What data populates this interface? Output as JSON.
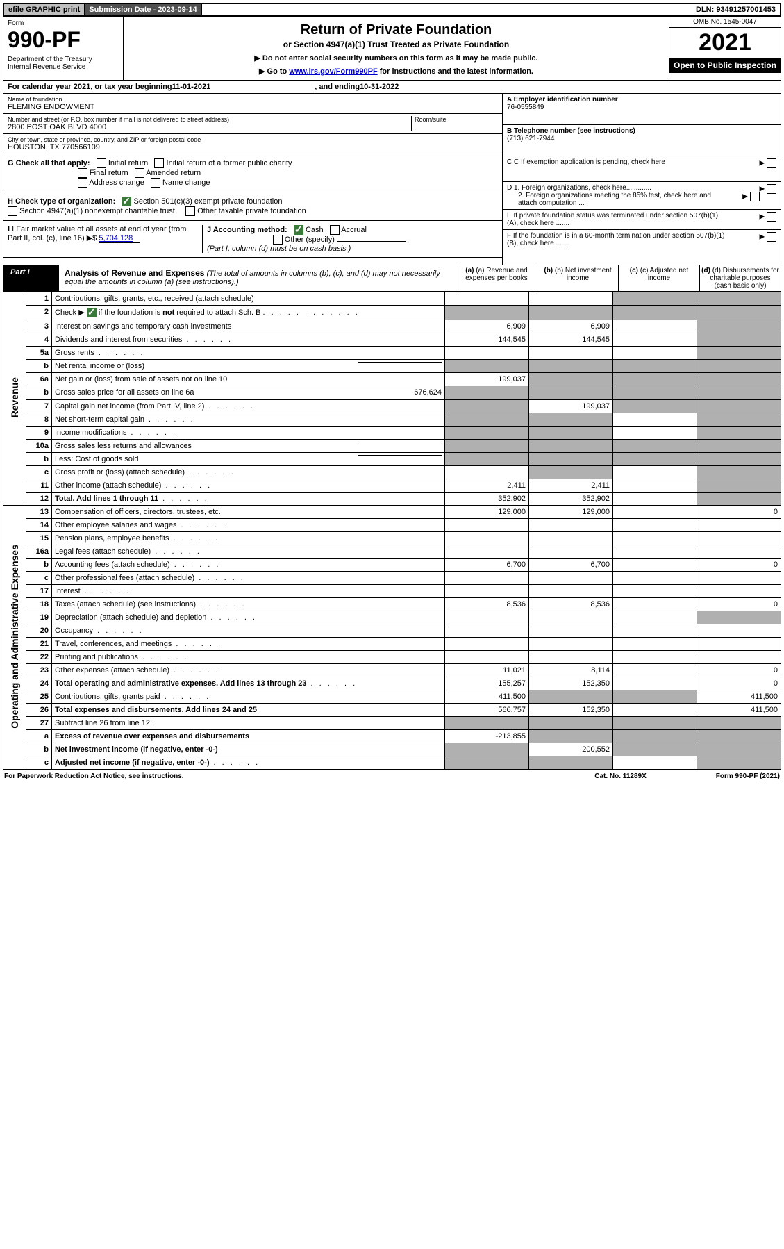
{
  "top": {
    "efile": "efile GRAPHIC print",
    "sub_label": "Submission Date - 2023-09-14",
    "dln": "DLN: 93491257001453"
  },
  "header": {
    "form_label": "Form",
    "form_num": "990-PF",
    "dept": "Department of the Treasury\nInternal Revenue Service",
    "title": "Return of Private Foundation",
    "subtitle": "or Section 4947(a)(1) Trust Treated as Private Foundation",
    "note1": "▶ Do not enter social security numbers on this form as it may be made public.",
    "note2_pre": "▶ Go to ",
    "note2_link": "www.irs.gov/Form990PF",
    "note2_post": " for instructions and the latest information.",
    "omb": "OMB No. 1545-0047",
    "year": "2021",
    "open": "Open to Public Inspection"
  },
  "cal": {
    "pre": "For calendar year 2021, or tax year beginning ",
    "begin": "11-01-2021",
    "mid": ", and ending ",
    "end": "10-31-2022"
  },
  "foundation": {
    "name_label": "Name of foundation",
    "name": "FLEMING ENDOWMENT",
    "addr_label": "Number and street (or P.O. box number if mail is not delivered to street address)",
    "addr": "2800 POST OAK BLVD 4000",
    "room_label": "Room/suite",
    "city_label": "City or town, state or province, country, and ZIP or foreign postal code",
    "city": "HOUSTON, TX  770566109",
    "ein_label": "A Employer identification number",
    "ein": "76-0555849",
    "phone_label": "B Telephone number (see instructions)",
    "phone": "(713) 621-7944",
    "c_label": "C If exemption application is pending, check here",
    "d1": "D 1. Foreign organizations, check here.............",
    "d2": "2. Foreign organizations meeting the 85% test, check here and attach computation ...",
    "e": "E If private foundation status was terminated under section 507(b)(1)(A), check here .......",
    "f": "F If the foundation is in a 60-month termination under section 507(b)(1)(B), check here ......."
  },
  "g": {
    "label": "G Check all that apply:",
    "opts": [
      "Initial return",
      "Initial return of a former public charity",
      "Final return",
      "Amended return",
      "Address change",
      "Name change"
    ]
  },
  "h": {
    "label": "H Check type of organization:",
    "opt1": "Section 501(c)(3) exempt private foundation",
    "opt2": "Section 4947(a)(1) nonexempt charitable trust",
    "opt3": "Other taxable private foundation"
  },
  "i": {
    "label": "I Fair market value of all assets at end of year (from Part II, col. (c), line 16)",
    "val": "5,704,128"
  },
  "j": {
    "label": "J Accounting method:",
    "cash": "Cash",
    "accrual": "Accrual",
    "other": "Other (specify)",
    "note": "(Part I, column (d) must be on cash basis.)"
  },
  "part1": {
    "tab": "Part I",
    "title": "Analysis of Revenue and Expenses",
    "title_note": " (The total of amounts in columns (b), (c), and (d) may not necessarily equal the amounts in column (a) (see instructions).)",
    "col_a": "(a) Revenue and expenses per books",
    "col_b": "(b) Net investment income",
    "col_c": "(c) Adjusted net income",
    "col_d": "(d) Disbursements for charitable purposes (cash basis only)"
  },
  "vlabels": {
    "revenue": "Revenue",
    "expenses": "Operating and Administrative Expenses"
  },
  "rows": [
    {
      "n": "1",
      "desc": "Contributions, gifts, grants, etc., received (attach schedule)",
      "a": "",
      "b": "",
      "c": "shade",
      "d": "shade"
    },
    {
      "n": "2",
      "desc": "Check ▶ ☑ if the foundation is not required to attach Sch. B",
      "a": "shade",
      "b": "shade",
      "c": "shade",
      "d": "shade",
      "dotted": true
    },
    {
      "n": "3",
      "desc": "Interest on savings and temporary cash investments",
      "a": "6,909",
      "b": "6,909",
      "c": "",
      "d": "shade"
    },
    {
      "n": "4",
      "desc": "Dividends and interest from securities",
      "a": "144,545",
      "b": "144,545",
      "c": "",
      "d": "shade",
      "dotted": true
    },
    {
      "n": "5a",
      "desc": "Gross rents",
      "a": "",
      "b": "",
      "c": "",
      "d": "shade",
      "dotted": true
    },
    {
      "n": "b",
      "desc": "Net rental income or (loss)",
      "a": "shade",
      "b": "shade",
      "c": "shade",
      "d": "shade",
      "inline": true
    },
    {
      "n": "6a",
      "desc": "Net gain or (loss) from sale of assets not on line 10",
      "a": "199,037",
      "b": "shade",
      "c": "shade",
      "d": "shade"
    },
    {
      "n": "b",
      "desc": "Gross sales price for all assets on line 6a",
      "inline_val": "676,624",
      "a": "shade",
      "b": "shade",
      "c": "shade",
      "d": "shade"
    },
    {
      "n": "7",
      "desc": "Capital gain net income (from Part IV, line 2)",
      "a": "shade",
      "b": "199,037",
      "c": "shade",
      "d": "shade",
      "dotted": true
    },
    {
      "n": "8",
      "desc": "Net short-term capital gain",
      "a": "shade",
      "b": "shade",
      "c": "",
      "d": "shade",
      "dotted": true
    },
    {
      "n": "9",
      "desc": "Income modifications",
      "a": "shade",
      "b": "shade",
      "c": "",
      "d": "shade",
      "dotted": true
    },
    {
      "n": "10a",
      "desc": "Gross sales less returns and allowances",
      "a": "shade",
      "b": "shade",
      "c": "shade",
      "d": "shade",
      "inline": true
    },
    {
      "n": "b",
      "desc": "Less: Cost of goods sold",
      "a": "shade",
      "b": "shade",
      "c": "shade",
      "d": "shade",
      "inline": true,
      "dotted": true
    },
    {
      "n": "c",
      "desc": "Gross profit or (loss) (attach schedule)",
      "a": "",
      "b": "shade",
      "c": "",
      "d": "shade",
      "dotted": true
    },
    {
      "n": "11",
      "desc": "Other income (attach schedule)",
      "a": "2,411",
      "b": "2,411",
      "c": "",
      "d": "shade",
      "dotted": true
    },
    {
      "n": "12",
      "desc": "Total. Add lines 1 through 11",
      "a": "352,902",
      "b": "352,902",
      "c": "",
      "d": "shade",
      "bold": true,
      "dotted": true
    }
  ],
  "exp_rows": [
    {
      "n": "13",
      "desc": "Compensation of officers, directors, trustees, etc.",
      "a": "129,000",
      "b": "129,000",
      "c": "",
      "d": "0"
    },
    {
      "n": "14",
      "desc": "Other employee salaries and wages",
      "a": "",
      "b": "",
      "c": "",
      "d": "",
      "dotted": true
    },
    {
      "n": "15",
      "desc": "Pension plans, employee benefits",
      "a": "",
      "b": "",
      "c": "",
      "d": "",
      "dotted": true
    },
    {
      "n": "16a",
      "desc": "Legal fees (attach schedule)",
      "a": "",
      "b": "",
      "c": "",
      "d": "",
      "dotted": true
    },
    {
      "n": "b",
      "desc": "Accounting fees (attach schedule)",
      "a": "6,700",
      "b": "6,700",
      "c": "",
      "d": "0",
      "dotted": true
    },
    {
      "n": "c",
      "desc": "Other professional fees (attach schedule)",
      "a": "",
      "b": "",
      "c": "",
      "d": "",
      "dotted": true
    },
    {
      "n": "17",
      "desc": "Interest",
      "a": "",
      "b": "",
      "c": "",
      "d": "",
      "dotted": true
    },
    {
      "n": "18",
      "desc": "Taxes (attach schedule) (see instructions)",
      "a": "8,536",
      "b": "8,536",
      "c": "",
      "d": "0",
      "dotted": true
    },
    {
      "n": "19",
      "desc": "Depreciation (attach schedule) and depletion",
      "a": "",
      "b": "",
      "c": "",
      "d": "shade",
      "dotted": true
    },
    {
      "n": "20",
      "desc": "Occupancy",
      "a": "",
      "b": "",
      "c": "",
      "d": "",
      "dotted": true
    },
    {
      "n": "21",
      "desc": "Travel, conferences, and meetings",
      "a": "",
      "b": "",
      "c": "",
      "d": "",
      "dotted": true
    },
    {
      "n": "22",
      "desc": "Printing and publications",
      "a": "",
      "b": "",
      "c": "",
      "d": "",
      "dotted": true
    },
    {
      "n": "23",
      "desc": "Other expenses (attach schedule)",
      "a": "11,021",
      "b": "8,114",
      "c": "",
      "d": "0",
      "dotted": true
    },
    {
      "n": "24",
      "desc": "Total operating and administrative expenses. Add lines 13 through 23",
      "a": "155,257",
      "b": "152,350",
      "c": "",
      "d": "0",
      "bold": true,
      "dotted": true
    },
    {
      "n": "25",
      "desc": "Contributions, gifts, grants paid",
      "a": "411,500",
      "b": "shade",
      "c": "shade",
      "d": "411,500",
      "dotted": true
    },
    {
      "n": "26",
      "desc": "Total expenses and disbursements. Add lines 24 and 25",
      "a": "566,757",
      "b": "152,350",
      "c": "",
      "d": "411,500",
      "bold": true
    },
    {
      "n": "27",
      "desc": "Subtract line 26 from line 12:",
      "a": "shade",
      "b": "shade",
      "c": "shade",
      "d": "shade"
    },
    {
      "n": "a",
      "desc": "Excess of revenue over expenses and disbursements",
      "a": "-213,855",
      "b": "shade",
      "c": "shade",
      "d": "shade",
      "bold": true
    },
    {
      "n": "b",
      "desc": "Net investment income (if negative, enter -0-)",
      "a": "shade",
      "b": "200,552",
      "c": "shade",
      "d": "shade",
      "bold": true
    },
    {
      "n": "c",
      "desc": "Adjusted net income (if negative, enter -0-)",
      "a": "shade",
      "b": "shade",
      "c": "",
      "d": "shade",
      "bold": true,
      "dotted": true
    }
  ],
  "footer": {
    "left": "For Paperwork Reduction Act Notice, see instructions.",
    "mid": "Cat. No. 11289X",
    "right": "Form 990-PF (2021)"
  }
}
